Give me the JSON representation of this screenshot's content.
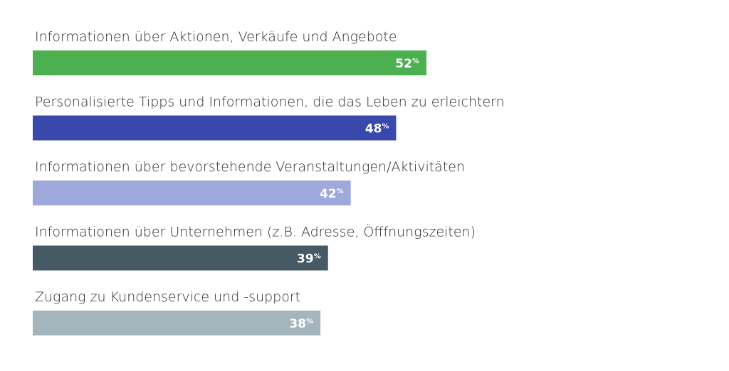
{
  "chart_data": {
    "type": "bar",
    "orientation": "horizontal",
    "categories": [
      "Informationen über Aktionen, Verkäufe und Angebote",
      "Personalisierte Tipps und Informationen, die das Leben zu erleichtern",
      "Informationen über bevorstehende Veranstaltungen/Aktivitäten",
      "Informationen über Unternehmen (z.B. Adresse, Öfffnungszeiten)",
      "Zugang zu Kundenservice und -support"
    ],
    "values": [
      52,
      48,
      42,
      39,
      38
    ],
    "value_labels": [
      "52",
      "48",
      "42",
      "39",
      "38"
    ],
    "unit": "%",
    "colors": [
      "#4cb050",
      "#3848ab",
      "#9fa8da",
      "#455a64",
      "#a5b5be"
    ],
    "xlim": [
      0,
      100
    ],
    "grid": false,
    "legend": "none"
  }
}
